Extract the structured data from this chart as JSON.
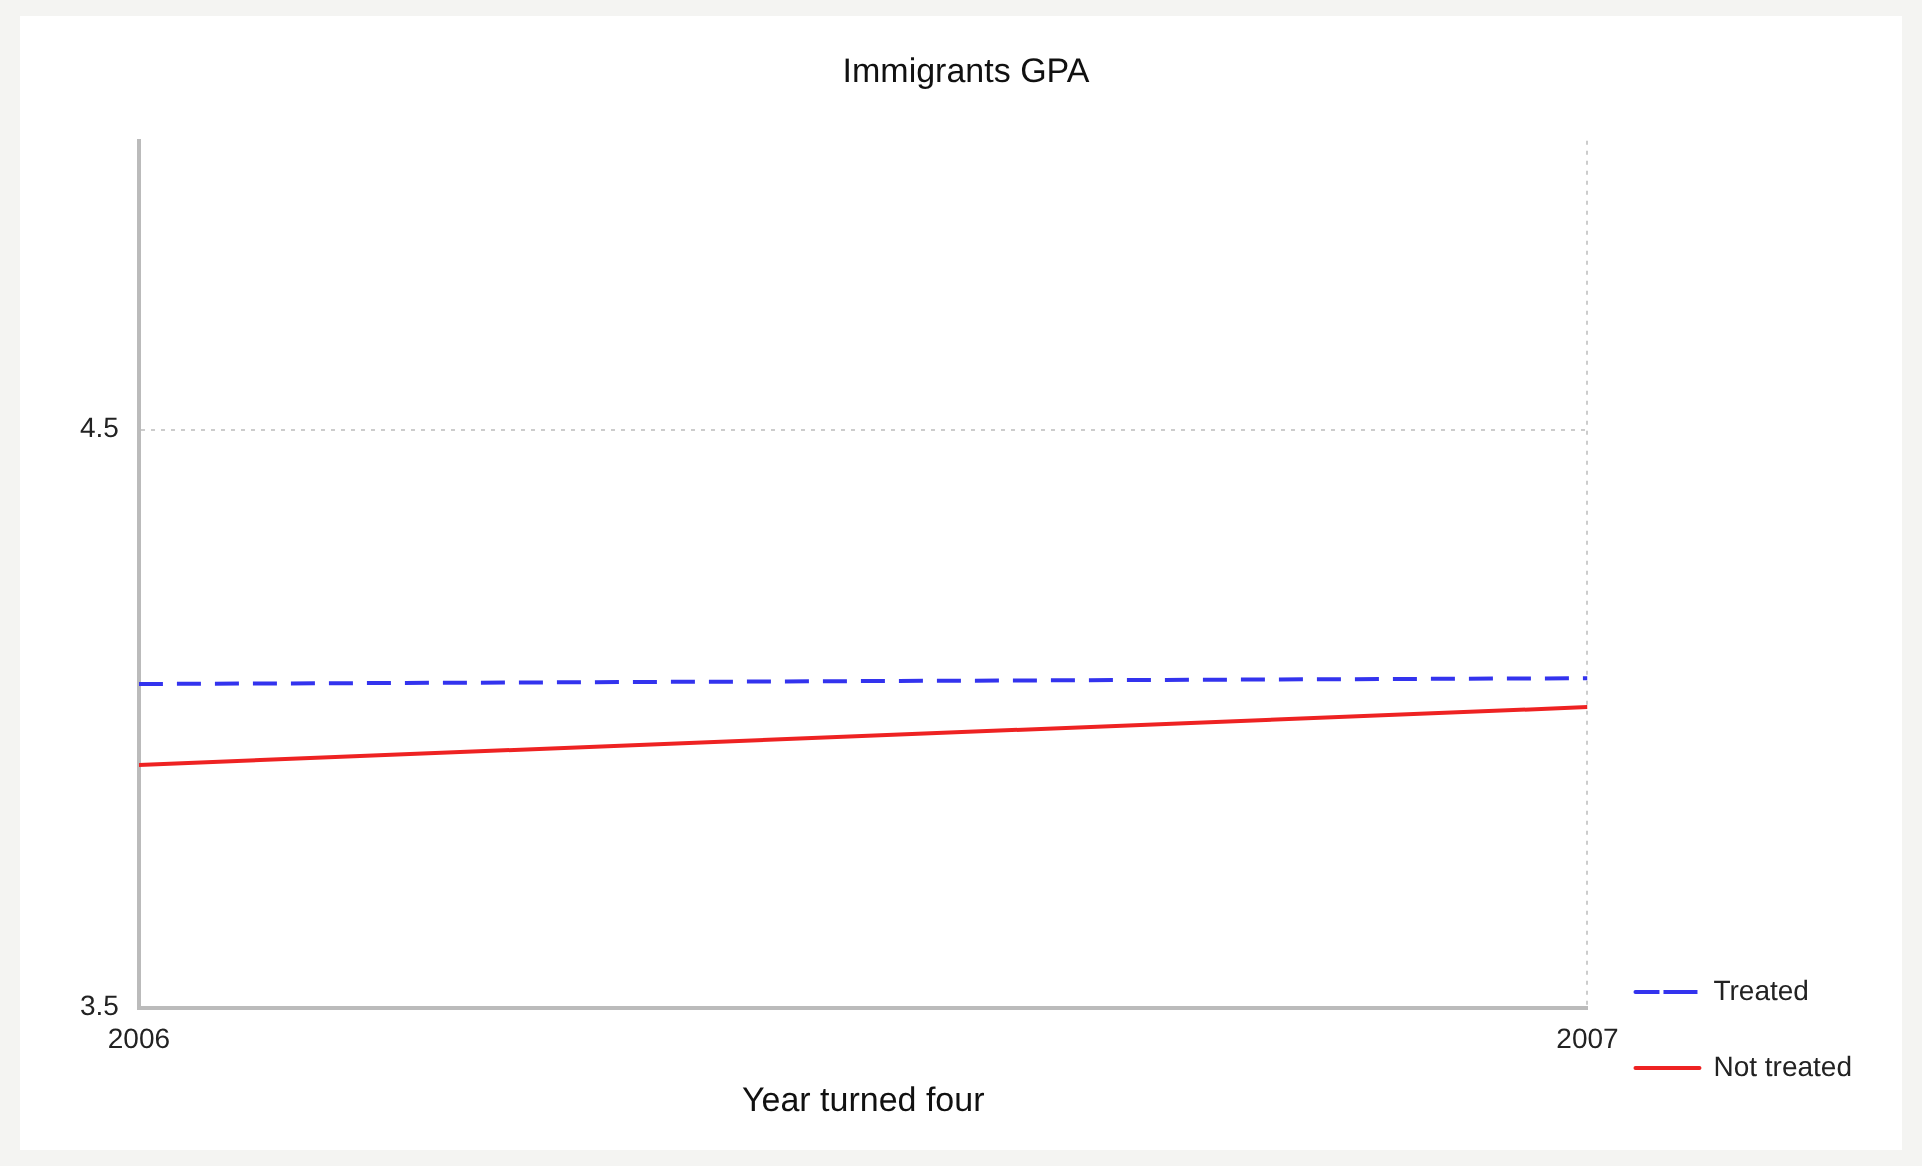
{
  "chart_data": {
    "type": "line",
    "title": "Immigrants GPA",
    "xlabel": "Year turned four",
    "x": [
      2006,
      2007
    ],
    "xlim": [
      2006,
      2007
    ],
    "xticks": [
      2006,
      2007
    ],
    "ylim": [
      3.5,
      5.0
    ],
    "yticks": [
      3.5,
      4.5
    ],
    "series": [
      {
        "name": "Treated",
        "color": "#3333ee",
        "values": [
          4.06,
          4.07
        ],
        "line_style": "dashed"
      },
      {
        "name": "Not treated",
        "color": "#ee2222",
        "values": [
          3.92,
          4.02
        ],
        "line_style": "solid"
      }
    ],
    "grid": true,
    "legend": "bottom right",
    "marker": "none"
  }
}
